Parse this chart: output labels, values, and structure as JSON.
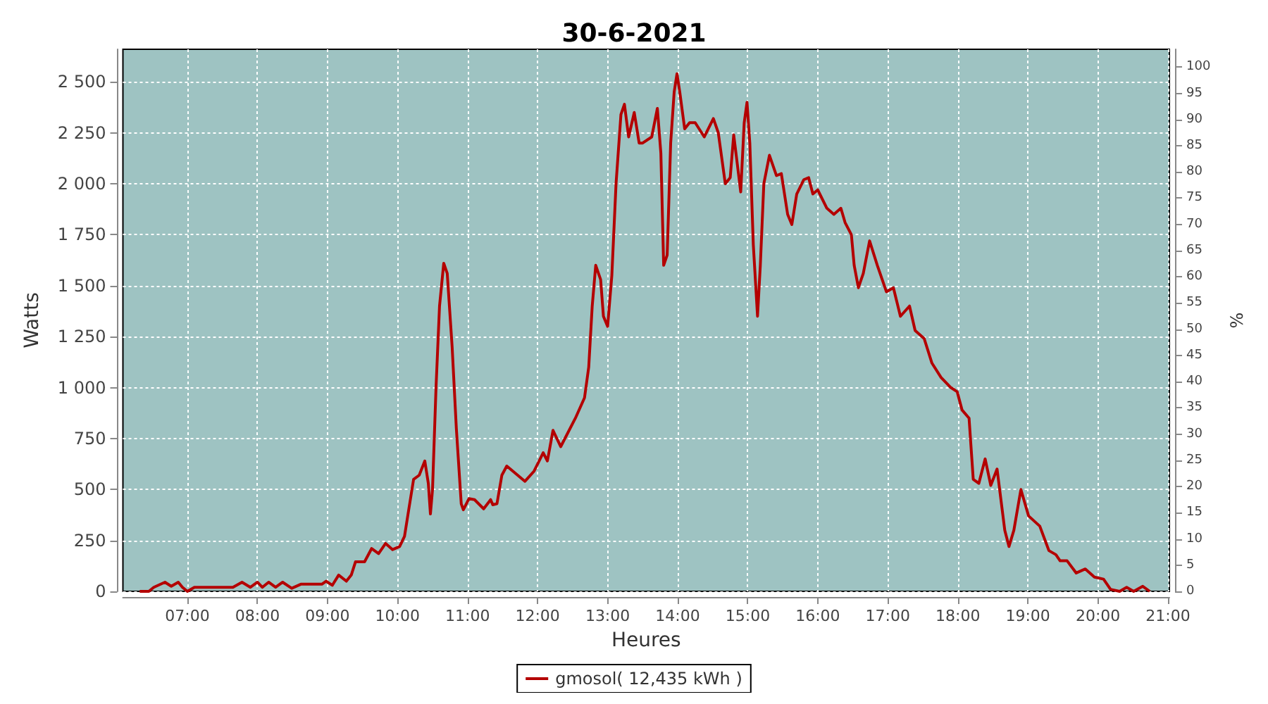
{
  "chart_data": {
    "type": "line",
    "title": "30-6-2021",
    "xlabel": "Heures",
    "ylabel": "Watts",
    "y2label": "%",
    "xlim": [
      6.08,
      21.02
    ],
    "xticks": [
      {
        "value": 7,
        "label": "07:00"
      },
      {
        "value": 8,
        "label": "08:00"
      },
      {
        "value": 9,
        "label": "09:00"
      },
      {
        "value": 10,
        "label": "10:00"
      },
      {
        "value": 11,
        "label": "11:00"
      },
      {
        "value": 12,
        "label": "12:00"
      },
      {
        "value": 13,
        "label": "13:00"
      },
      {
        "value": 14,
        "label": "14:00"
      },
      {
        "value": 15,
        "label": "15:00"
      },
      {
        "value": 16,
        "label": "16:00"
      },
      {
        "value": 17,
        "label": "17:00"
      },
      {
        "value": 18,
        "label": "18:00"
      },
      {
        "value": 19,
        "label": "19:00"
      },
      {
        "value": 20,
        "label": "20:00"
      },
      {
        "value": 21,
        "label": "21:00"
      }
    ],
    "ylim": [
      0,
      2660
    ],
    "yticks": [
      0,
      250,
      500,
      750,
      {
        "value": 1000,
        "label": "1 000"
      },
      {
        "value": 1250,
        "label": "1 250"
      },
      {
        "value": 1500,
        "label": "1 500"
      },
      {
        "value": 1750,
        "label": "1 750"
      },
      {
        "value": 2000,
        "label": "2 000"
      },
      {
        "value": 2250,
        "label": "2 250"
      },
      {
        "value": 2500,
        "label": "2 500"
      }
    ],
    "y2lim": [
      0,
      103.4
    ],
    "y2ticks": [
      0,
      5,
      10,
      15,
      20,
      25,
      30,
      35,
      40,
      45,
      50,
      55,
      60,
      65,
      70,
      75,
      80,
      85,
      90,
      95,
      100
    ],
    "grid": true,
    "legend": "bottom",
    "line_style": "solid",
    "series": [
      {
        "name": "gmosol( 12,435 kWh )",
        "color": "#b40000",
        "x": [
          6.32,
          6.45,
          6.52,
          6.68,
          6.77,
          6.87,
          6.93,
          7.0,
          7.1,
          7.65,
          7.78,
          7.9,
          8.0,
          8.07,
          8.16,
          8.26,
          8.36,
          8.49,
          8.62,
          8.92,
          8.98,
          9.07,
          9.16,
          9.27,
          9.34,
          9.4,
          9.53,
          9.63,
          9.73,
          9.83,
          9.93,
          10.03,
          10.1,
          10.16,
          10.23,
          10.31,
          10.39,
          10.44,
          10.47,
          10.5,
          10.55,
          10.6,
          10.66,
          10.71,
          10.78,
          10.84,
          10.91,
          10.94,
          11.02,
          11.1,
          11.23,
          11.33,
          11.36,
          11.42,
          11.49,
          11.56,
          11.82,
          11.95,
          12.08,
          12.14,
          12.22,
          12.33,
          12.54,
          12.67,
          12.73,
          12.78,
          12.83,
          12.9,
          12.94,
          13.0,
          13.06,
          13.12,
          13.19,
          13.24,
          13.3,
          13.38,
          13.45,
          13.5,
          13.63,
          13.71,
          13.76,
          13.8,
          13.85,
          13.9,
          13.95,
          13.99,
          14.03,
          14.1,
          14.17,
          14.25,
          14.38,
          14.51,
          14.58,
          14.68,
          14.75,
          14.8,
          14.85,
          14.9,
          14.95,
          14.99,
          15.03,
          15.08,
          15.14,
          15.18,
          15.23,
          15.31,
          15.41,
          15.48,
          15.57,
          15.63,
          15.7,
          15.8,
          15.87,
          15.93,
          16.0,
          16.13,
          16.23,
          16.33,
          16.39,
          16.48,
          16.52,
          16.58,
          16.65,
          16.74,
          16.85,
          16.98,
          17.08,
          17.18,
          17.31,
          17.39,
          17.52,
          17.63,
          17.76,
          17.9,
          17.99,
          18.06,
          18.16,
          18.22,
          18.3,
          18.39,
          18.47,
          18.56,
          18.67,
          18.73,
          18.8,
          18.9,
          19.01,
          19.17,
          19.3,
          19.4,
          19.46,
          19.56,
          19.69,
          19.82,
          19.95,
          20.08,
          20.18,
          20.31,
          20.41,
          20.51,
          20.64,
          20.74
        ],
        "values": [
          0,
          0,
          20,
          45,
          25,
          45,
          20,
          0,
          20,
          20,
          45,
          20,
          45,
          20,
          45,
          20,
          45,
          15,
          35,
          35,
          50,
          30,
          80,
          50,
          80,
          145,
          145,
          210,
          185,
          235,
          205,
          220,
          270,
          400,
          550,
          570,
          640,
          530,
          380,
          500,
          1000,
          1400,
          1610,
          1560,
          1200,
          800,
          430,
          400,
          455,
          450,
          405,
          450,
          425,
          430,
          570,
          615,
          540,
          590,
          680,
          640,
          790,
          710,
          850,
          950,
          1100,
          1400,
          1600,
          1530,
          1350,
          1300,
          1550,
          2000,
          2340,
          2390,
          2230,
          2350,
          2200,
          2200,
          2230,
          2370,
          2150,
          1600,
          1650,
          2200,
          2450,
          2540,
          2450,
          2270,
          2300,
          2300,
          2230,
          2320,
          2250,
          2000,
          2030,
          2240,
          2100,
          1960,
          2300,
          2400,
          2200,
          1700,
          1350,
          1600,
          2000,
          2140,
          2040,
          2050,
          1850,
          1800,
          1950,
          2020,
          2030,
          1950,
          1970,
          1880,
          1850,
          1880,
          1810,
          1750,
          1600,
          1490,
          1560,
          1720,
          1600,
          1470,
          1490,
          1350,
          1400,
          1280,
          1240,
          1120,
          1050,
          1000,
          980,
          890,
          850,
          550,
          530,
          650,
          520,
          600,
          300,
          220,
          300,
          500,
          370,
          320,
          200,
          180,
          150,
          150,
          90,
          110,
          70,
          60,
          10,
          0,
          20,
          0,
          25,
          0
        ]
      }
    ]
  }
}
